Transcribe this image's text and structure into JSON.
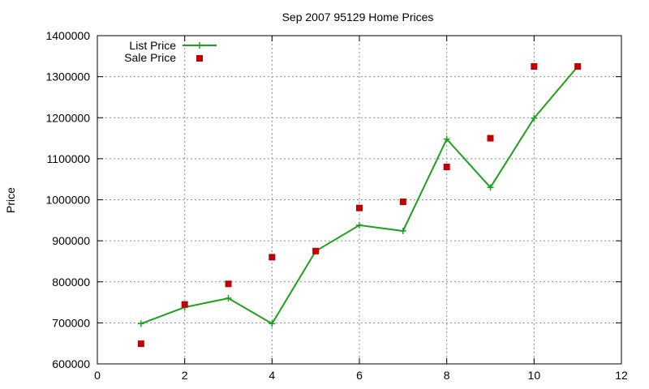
{
  "chart_data": {
    "type": "line",
    "title": "Sep 2007 95129 Home Prices",
    "xlabel": "",
    "ylabel": "Price",
    "xlim": [
      0,
      12
    ],
    "ylim": [
      600000,
      1400000
    ],
    "x_ticks": [
      0,
      2,
      4,
      6,
      8,
      10,
      12
    ],
    "y_ticks": [
      600000,
      700000,
      800000,
      900000,
      1000000,
      1100000,
      1200000,
      1300000,
      1400000
    ],
    "grid": true,
    "legend_position": "top-left",
    "series": [
      {
        "name": "List Price",
        "style": "line-with-plus-markers",
        "color": "#1aa31a",
        "points": [
          [
            1,
            698000
          ],
          [
            2,
            738000
          ],
          [
            3,
            760000
          ],
          [
            4,
            698000
          ],
          [
            5,
            875000
          ],
          [
            6,
            938000
          ],
          [
            7,
            924000
          ],
          [
            8,
            1148000
          ],
          [
            9,
            1030000
          ],
          [
            10,
            1199000
          ],
          [
            11,
            1325000
          ]
        ]
      },
      {
        "name": "Sale Price",
        "style": "square-markers",
        "color": "#c00000",
        "points": [
          [
            1,
            649000
          ],
          [
            2,
            745000
          ],
          [
            3,
            795000
          ],
          [
            4,
            860000
          ],
          [
            5,
            875000
          ],
          [
            6,
            980000
          ],
          [
            7,
            995000
          ],
          [
            8,
            1080000
          ],
          [
            9,
            1150000
          ],
          [
            10,
            1325000
          ],
          [
            11,
            1325000
          ]
        ]
      }
    ]
  }
}
